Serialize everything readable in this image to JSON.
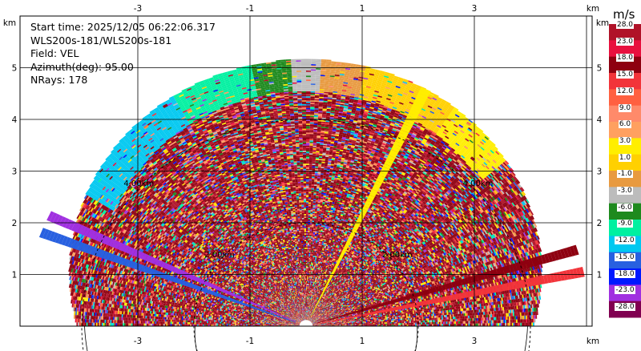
{
  "header": {
    "start_time": "Start time: 2025/12/05 06:22:06.317",
    "instrument": "WLS200s-181/WLS200s-181",
    "field": "Field: VEL",
    "azimuth": "Azimuth(deg): 95.00",
    "nrays": "NRays: 178"
  },
  "colorbar": {
    "unit": "m/s",
    "labels": [
      "28.0",
      "23.0",
      "18.0",
      "15.0",
      "12.0",
      "9.0",
      "6.0",
      "3.0",
      "1.0",
      "-1.0",
      "-3.0",
      "-6.0",
      "-9.0",
      "-12.0",
      "-15.0",
      "-18.0",
      "-23.0",
      "-28.0"
    ],
    "colors": [
      "#b01228",
      "#e8103e",
      "#8e0010",
      "#f2343a",
      "#ff6040",
      "#ff8a6a",
      "#ffa060",
      "#ffee00",
      "#ffd000",
      "#e89a40",
      "#bcbcbc",
      "#1e8a1e",
      "#00f0a0",
      "#00c8f0",
      "#2860e0",
      "#0018ff",
      "#a030e0",
      "#800050"
    ]
  },
  "chart_data": {
    "type": "heatmap",
    "subtype": "polar RHI velocity scan",
    "field": "VEL",
    "units": "m/s",
    "x_tick_labels": [
      "-3",
      "-1",
      "1",
      "3"
    ],
    "y_tick_labels": [
      "1",
      "2",
      "3",
      "4",
      "5"
    ],
    "axis_unit_label": "km",
    "range_ring_labels": [
      "2.00km",
      "4.00km"
    ],
    "xlim": [
      -5.5,
      5.25
    ],
    "ylim": [
      0,
      5.8
    ],
    "max_range_km": 5.15,
    "grid": true,
    "color_scale": [
      {
        "min": 23.0,
        "max": 28.0,
        "color": "#b01228"
      },
      {
        "min": 18.0,
        "max": 23.0,
        "color": "#e8103e"
      },
      {
        "min": 15.0,
        "max": 18.0,
        "color": "#8e0010"
      },
      {
        "min": 12.0,
        "max": 15.0,
        "color": "#f2343a"
      },
      {
        "min": 9.0,
        "max": 12.0,
        "color": "#ff6040"
      },
      {
        "min": 6.0,
        "max": 9.0,
        "color": "#ff8a6a"
      },
      {
        "min": 3.0,
        "max": 6.0,
        "color": "#ffa060"
      },
      {
        "min": 1.0,
        "max": 3.0,
        "color": "#ffee00"
      },
      {
        "min": -1.0,
        "max": 1.0,
        "color": "#ffd000"
      },
      {
        "min": -3.0,
        "max": -1.0,
        "color": "#e89a40"
      },
      {
        "min": -6.0,
        "max": -3.0,
        "color": "#bcbcbc"
      },
      {
        "min": -9.0,
        "max": -6.0,
        "color": "#1e8a1e"
      },
      {
        "min": -12.0,
        "max": -9.0,
        "color": "#00f0a0"
      },
      {
        "min": -15.0,
        "max": -12.0,
        "color": "#00c8f0"
      },
      {
        "min": -18.0,
        "max": -15.0,
        "color": "#2860e0"
      },
      {
        "min": -23.0,
        "max": -18.0,
        "color": "#0018ff"
      },
      {
        "min": -28.0,
        "max": -23.0,
        "color": "#a030e0"
      }
    ],
    "outer_arc_sectors": [
      {
        "from_deg": 118,
        "to_deg": 147,
        "color": "#00c8f0"
      },
      {
        "from_deg": 101,
        "to_deg": 118,
        "color": "#00f0a0"
      },
      {
        "from_deg": 93,
        "to_deg": 101,
        "color": "#1e8a1e"
      },
      {
        "from_deg": 87,
        "to_deg": 93,
        "color": "#bcbcbc"
      },
      {
        "from_deg": 78,
        "to_deg": 87,
        "color": "#e89a40"
      },
      {
        "from_deg": 58,
        "to_deg": 78,
        "color": "#ffd000"
      },
      {
        "from_deg": 42,
        "to_deg": 58,
        "color": "#ffee00"
      }
    ],
    "beams": [
      {
        "deg": 159,
        "color": "#2860e0"
      },
      {
        "deg": 155,
        "color": "#a030e0"
      },
      {
        "deg": 17,
        "color": "#8e0010"
      },
      {
        "deg": 12,
        "color": "#f2343a"
      },
      {
        "deg": 65,
        "color": "#ffee00"
      }
    ]
  }
}
